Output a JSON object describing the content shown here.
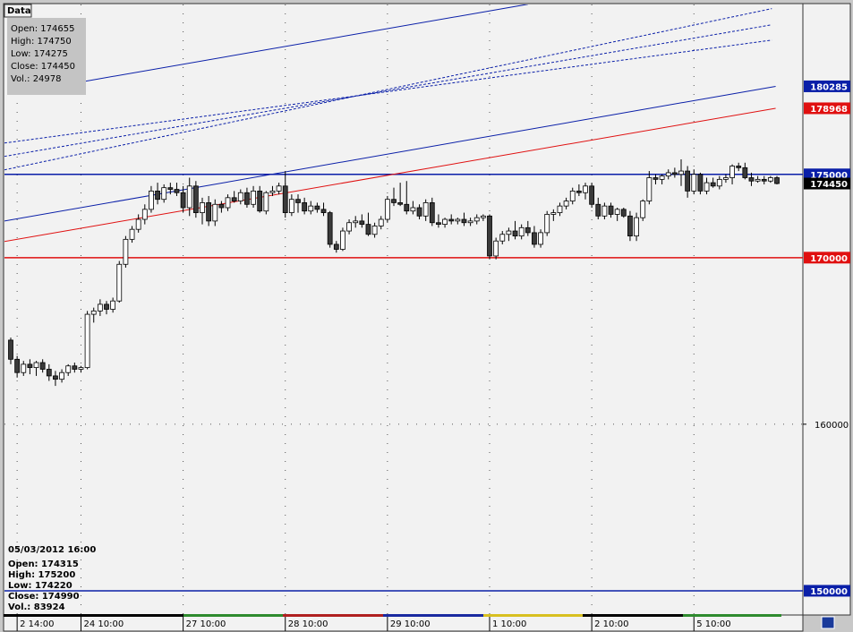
{
  "chart_data": {
    "type": "candlestick",
    "info_box": {
      "title": "Data",
      "lines": [
        "Open: 174655",
        "High: 174750",
        "Low: 174275",
        "Close: 174450",
        "Vol.: 24978"
      ]
    },
    "cursor_box": {
      "title": "05/03/2012 16:00",
      "lines": [
        "Open: 174315",
        "High: 175200",
        "Low: 174220",
        "Close: 174990",
        "Vol.: 83924"
      ]
    },
    "ylim": [
      148600,
      185200
    ],
    "yticks": [
      160000
    ],
    "grid": true,
    "up_color": "#ffffff",
    "down_color": "#3a3a3a",
    "categories": [
      null,
      "2 14:00",
      null,
      null,
      null,
      null,
      null,
      null,
      null,
      null,
      null,
      "24 10:00",
      null,
      null,
      null,
      null,
      null,
      null,
      null,
      null,
      null,
      null,
      null,
      null,
      null,
      null,
      null,
      "27 10:00",
      null,
      null,
      null,
      null,
      null,
      null,
      null,
      null,
      null,
      null,
      null,
      null,
      null,
      null,
      null,
      "28 10:00",
      null,
      null,
      null,
      null,
      null,
      null,
      null,
      null,
      null,
      null,
      null,
      null,
      null,
      null,
      null,
      "29 10:00",
      null,
      null,
      null,
      null,
      null,
      null,
      null,
      null,
      null,
      null,
      null,
      null,
      null,
      null,
      null,
      "1 10:00",
      null,
      null,
      null,
      null,
      null,
      null,
      null,
      null,
      null,
      null,
      null,
      null,
      null,
      null,
      null,
      "2 10:00",
      null,
      null,
      null,
      null,
      null,
      null,
      null,
      null,
      null,
      null,
      null,
      null,
      null,
      null,
      null,
      "5 10:00",
      null,
      null,
      null,
      null,
      null,
      null,
      null,
      null,
      null,
      null,
      null,
      null,
      null
    ],
    "open": [
      165050,
      163900,
      163100,
      163600,
      163400,
      163700,
      163300,
      162900,
      162700,
      163100,
      163500,
      163300,
      163400,
      166600,
      166800,
      167200,
      166900,
      167400,
      169600,
      171100,
      171700,
      172300,
      172900,
      174000,
      173500,
      174200,
      174100,
      173900,
      173000,
      174300,
      172700,
      173300,
      172200,
      173200,
      173000,
      173600,
      173400,
      173900,
      173200,
      174000,
      172800,
      173900,
      174000,
      174300,
      172700,
      173500,
      173300,
      172800,
      173100,
      172900,
      172700,
      170800,
      170500,
      171600,
      172100,
      172200,
      172000,
      171400,
      171900,
      172300,
      173500,
      173300,
      173200,
      172800,
      173000,
      172500,
      173300,
      172100,
      172000,
      172300,
      172200,
      172300,
      172100,
      172200,
      172400,
      172500,
      170100,
      171000,
      171400,
      171600,
      171300,
      171800,
      171500,
      170800,
      171500,
      172600,
      172700,
      173100,
      173400,
      174000,
      173900,
      174300,
      173200,
      172500,
      173100,
      172600,
      172900,
      172500,
      171300,
      172400,
      173400,
      174800,
      174700,
      174900,
      175100,
      175000,
      175200,
      174000,
      175000,
      174000,
      174500,
      174300,
      174700,
      174800,
      175500,
      175400,
      174800,
      174600,
      174700,
      174600,
      174800
    ],
    "high": [
      165200,
      164100,
      163800,
      163900,
      163800,
      163900,
      163600,
      163200,
      163300,
      163600,
      163700,
      163500,
      166800,
      167000,
      167500,
      167400,
      167600,
      169800,
      171300,
      171900,
      172600,
      173200,
      174300,
      174500,
      174400,
      174500,
      174500,
      174300,
      174800,
      174600,
      173600,
      173700,
      173500,
      173400,
      173800,
      174000,
      174100,
      174200,
      174300,
      174300,
      174000,
      174300,
      174500,
      175200,
      173800,
      173800,
      173600,
      173400,
      173300,
      173300,
      172800,
      171000,
      171800,
      172300,
      172500,
      172600,
      172700,
      172100,
      172500,
      173700,
      174200,
      174500,
      174600,
      173400,
      173200,
      173500,
      173600,
      172600,
      172400,
      172600,
      172400,
      172700,
      172400,
      172600,
      172600,
      172600,
      171200,
      171600,
      171800,
      172200,
      172000,
      172200,
      171900,
      171700,
      172800,
      172900,
      173300,
      173600,
      174200,
      174400,
      174500,
      174500,
      173600,
      173300,
      173300,
      173000,
      173000,
      172800,
      172700,
      173500,
      175200,
      175000,
      175000,
      175300,
      175400,
      175900,
      175500,
      175300,
      175100,
      174800,
      174800,
      174900,
      175000,
      175600,
      175700,
      175700,
      175100,
      174900,
      174900,
      174900,
      174900
    ],
    "low": [
      163600,
      162800,
      162900,
      163000,
      162900,
      163100,
      162600,
      162300,
      162500,
      162900,
      163100,
      163100,
      163300,
      166100,
      166500,
      166600,
      166700,
      167300,
      169400,
      170900,
      171500,
      172000,
      172700,
      173200,
      173300,
      173800,
      173700,
      172700,
      172500,
      172400,
      172000,
      171900,
      171900,
      172700,
      172800,
      173300,
      173200,
      173000,
      173000,
      172700,
      172600,
      173700,
      173800,
      172400,
      172500,
      172700,
      172600,
      172600,
      172700,
      172500,
      170600,
      170300,
      170400,
      171400,
      171800,
      171800,
      171300,
      171200,
      171700,
      172100,
      173100,
      173100,
      172600,
      172600,
      172300,
      172200,
      171900,
      171800,
      171800,
      172000,
      172000,
      171900,
      171900,
      172000,
      172200,
      169900,
      169900,
      170800,
      171000,
      171100,
      171100,
      171300,
      170600,
      170600,
      171300,
      172200,
      172500,
      172900,
      173200,
      173700,
      173500,
      173000,
      172300,
      172300,
      172400,
      172200,
      172400,
      171000,
      171000,
      172200,
      173200,
      174400,
      174400,
      174700,
      174800,
      174300,
      173600,
      173800,
      173800,
      173800,
      174200,
      174100,
      174500,
      174400,
      175200,
      174700,
      174300,
      174500,
      174400,
      174500,
      174400
    ],
    "close": [
      163900,
      163100,
      163600,
      163400,
      163700,
      163300,
      162900,
      162700,
      163100,
      163500,
      163300,
      163400,
      166600,
      166800,
      167200,
      166900,
      167400,
      169600,
      171100,
      171700,
      172300,
      172900,
      174000,
      173500,
      174200,
      174100,
      173900,
      173000,
      174300,
      172700,
      173300,
      172200,
      173200,
      173000,
      173600,
      173400,
      173900,
      173200,
      174000,
      172800,
      173900,
      174000,
      174300,
      172700,
      173500,
      173300,
      172800,
      173100,
      172900,
      172700,
      170800,
      170500,
      171600,
      172100,
      172200,
      172000,
      171400,
      171900,
      172300,
      173500,
      173300,
      173200,
      172800,
      173000,
      172500,
      173300,
      172100,
      172000,
      172300,
      172200,
      172300,
      172100,
      172200,
      172400,
      172500,
      170100,
      171000,
      171400,
      171600,
      171300,
      171800,
      171500,
      170800,
      171500,
      172600,
      172700,
      173100,
      173400,
      174000,
      173900,
      174300,
      173200,
      172500,
      173100,
      172600,
      172900,
      172500,
      171300,
      172400,
      173400,
      174800,
      174700,
      174900,
      175100,
      175000,
      175200,
      174000,
      175000,
      174000,
      174500,
      174300,
      174700,
      174800,
      175500,
      175400,
      174800,
      174600,
      174700,
      174600,
      174800,
      174450
    ],
    "last_price": {
      "value": 174450,
      "color": "#000000"
    },
    "levels": [
      {
        "value": 175000,
        "color": "#0a1fa8"
      },
      {
        "value": 170000,
        "color": "#e01010"
      },
      {
        "value": 150000,
        "color": "#0a1fa8"
      }
    ],
    "trendlines": [
      {
        "start": [
          -1,
          172200
        ],
        "end": [
          119.8,
          180285
        ],
        "color": "#0a1fa8",
        "dashed": false,
        "labeled": true
      },
      {
        "start": [
          -1,
          170970
        ],
        "end": [
          119.8,
          178968
        ],
        "color": "#e01010",
        "dashed": false,
        "labeled": true
      },
      {
        "start": [
          10.9,
          180540
        ],
        "end": [
          81,
          185215
        ],
        "color": "#0a1fa8",
        "dashed": false,
        "labeled": false
      },
      {
        "start": [
          -1,
          175270
        ],
        "end": [
          119.2,
          184950
        ],
        "color": "#0a1fa8",
        "dashed": true,
        "labeled": false
      },
      {
        "start": [
          -1,
          176080
        ],
        "end": [
          119.2,
          183980
        ],
        "color": "#0a1fa8",
        "dashed": true,
        "labeled": false
      },
      {
        "start": [
          -1,
          176880
        ],
        "end": [
          119.2,
          183060
        ],
        "color": "#0a1fa8",
        "dashed": true,
        "labeled": false
      }
    ]
  }
}
